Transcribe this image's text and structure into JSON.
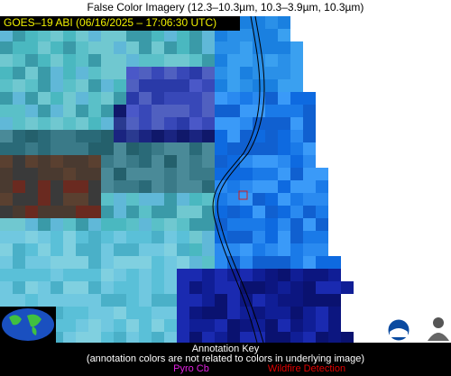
{
  "title": "False Color Imagery (12.3–10.3µm, 10.3–3.9µm, 10.3µm)",
  "header": "GOES–19 ABI (06/16/2025 – 17:06:30 UTC)",
  "annotation_key": {
    "title": "Annotation Key",
    "note": "(annotation colors are not related to colors in underlying image)",
    "items": [
      "Pyro Cb",
      "Wildfire Detection"
    ]
  }
}
